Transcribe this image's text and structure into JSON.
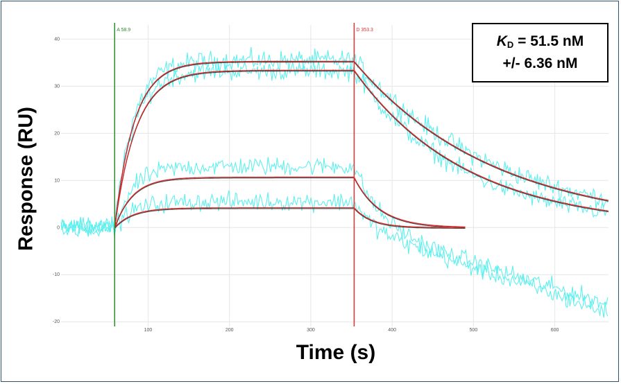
{
  "chart_data": {
    "type": "line",
    "xlabel": "Time (s)",
    "ylabel": "Response (RU)",
    "xlim": [
      -7,
      666
    ],
    "ylim": [
      -21,
      43
    ],
    "x_ticks": [
      100,
      200,
      300,
      400,
      500,
      600
    ],
    "y_ticks": [
      40,
      30,
      20,
      10,
      0,
      -10,
      -20
    ],
    "grid": true,
    "markers": [
      {
        "name": "A",
        "label": "A 58.9",
        "x": 58.9,
        "color": "#2e8b2e"
      },
      {
        "name": "D",
        "label": "D 353.3",
        "x": 353.3,
        "color": "#e03030"
      }
    ],
    "kinetics": {
      "association_start": 58.9,
      "dissociation_start": 353.3
    },
    "fit_curves": [
      {
        "plateau": 35.3,
        "kon_rate": 0.042,
        "koff_rate": 0.0058,
        "end_x": 666
      },
      {
        "plateau": 33.4,
        "kon_rate": 0.038,
        "koff_rate": 0.0072,
        "end_x": 666
      },
      {
        "plateau": 10.7,
        "kon_rate": 0.045,
        "koff_rate": 0.032,
        "end_x": 490
      },
      {
        "plateau": 4.2,
        "kon_rate": 0.045,
        "koff_rate": 0.045,
        "end_x": 490
      }
    ],
    "raw_traces": [
      {
        "plateau": 35.5,
        "decay": 0.0057,
        "drift": 0.0,
        "noise": 2.6
      },
      {
        "plateau": 33.2,
        "decay": 0.0075,
        "drift": 0.0,
        "noise": 2.4
      },
      {
        "plateau": 13.0,
        "decay": 0.03,
        "drift": -0.052,
        "noise": 2.4
      },
      {
        "plateau": 5.5,
        "decay": 0.045,
        "drift": -0.058,
        "noise": 2.4
      }
    ],
    "colors": {
      "raw": "#5ef0ee",
      "fit": "#e02020",
      "fit_shadow": "#222222",
      "grid": "#e6e6e6"
    }
  },
  "annotation": {
    "kd_symbol": "K",
    "kd_sub": "D",
    "kd_value": " = 51.5 nM",
    "kd_error": "+/- 6.36 nM"
  },
  "axis": {
    "xlabel": "Time (s)",
    "ylabel": "Response (RU)"
  }
}
